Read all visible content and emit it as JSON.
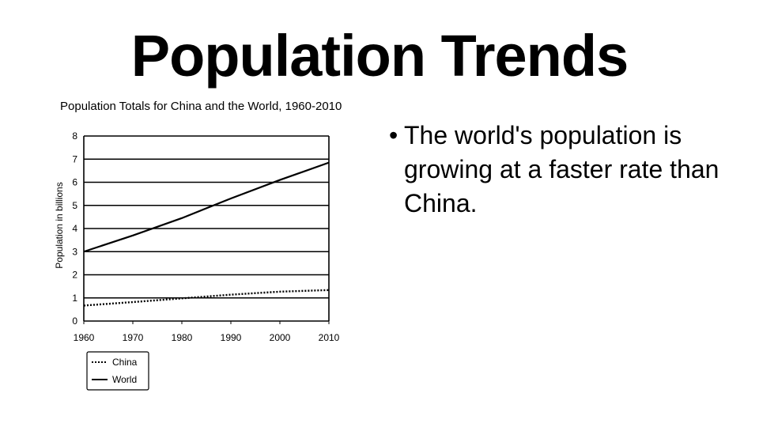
{
  "slide": {
    "title": "Population Trends",
    "bullet": "The world's population is growing at a faster rate than China."
  },
  "chart_data": {
    "type": "line",
    "title": "Population Totals for China and the World, 1960-2010",
    "xlabel": "",
    "ylabel": "Population in billions",
    "x": [
      1960,
      1970,
      1980,
      1990,
      2000,
      2010
    ],
    "xlim": [
      1960,
      2010
    ],
    "ylim": [
      0,
      8
    ],
    "yticks": [
      0,
      1,
      2,
      3,
      4,
      5,
      6,
      7,
      8
    ],
    "grid": "horizontal",
    "legend_position": "bottom-left",
    "series": [
      {
        "name": "China",
        "style": "dotted",
        "values": [
          0.67,
          0.82,
          0.98,
          1.14,
          1.27,
          1.34
        ]
      },
      {
        "name": "World",
        "style": "solid",
        "values": [
          3.0,
          3.7,
          4.45,
          5.3,
          6.1,
          6.85
        ]
      }
    ],
    "colors": {
      "line": "#000000",
      "background": "#ffffff"
    }
  }
}
